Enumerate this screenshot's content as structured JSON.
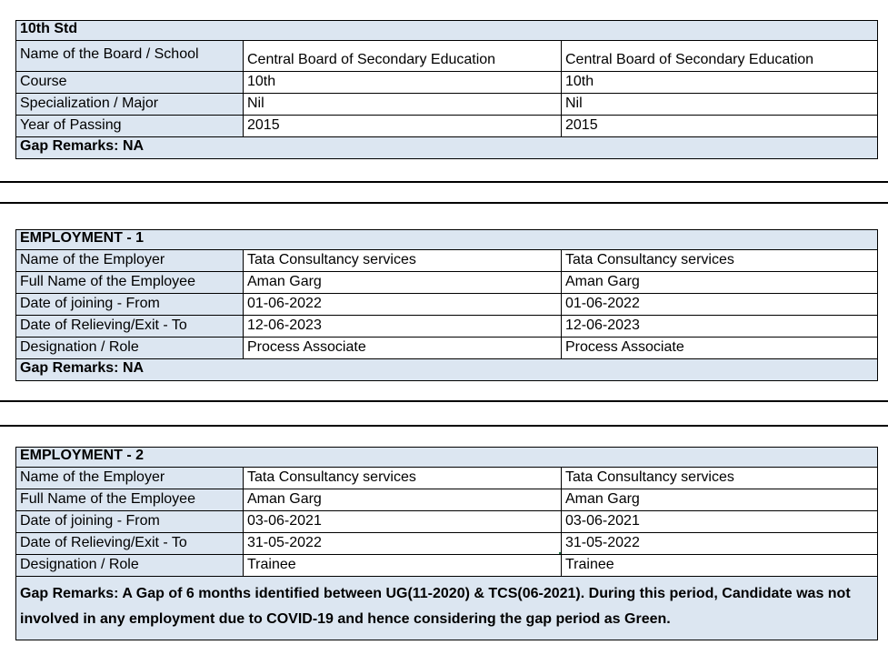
{
  "colors": {
    "section_bg": "#DCE6F1",
    "cell_bg": "#FFFFFF",
    "grid_border": "#000000",
    "selection_border": "#217346"
  },
  "sheet": {
    "tables": [
      {
        "header": "10th Std",
        "rows": [
          {
            "label": "Name of the Board / School",
            "values": [
              "Central Board of Secondary Education",
              "Central Board of Secondary Education"
            ]
          },
          {
            "label": "Course",
            "values": [
              "10th",
              "10th"
            ]
          },
          {
            "label": "Specialization / Major",
            "values": [
              "Nil",
              "Nil"
            ]
          },
          {
            "label": "Year of Passing",
            "values": [
              "2015",
              "2015"
            ]
          }
        ],
        "gap_remarks": "Gap Remarks: NA"
      },
      {
        "header": "EMPLOYMENT - 1",
        "rows": [
          {
            "label": "Name of the Employer",
            "values": [
              "Tata Consultancy services",
              "Tata Consultancy services"
            ]
          },
          {
            "label": "Full Name of the Employee",
            "values": [
              "Aman Garg",
              "Aman Garg"
            ]
          },
          {
            "label": "Date of joining - From",
            "values": [
              "01-06-2022",
              "01-06-2022"
            ]
          },
          {
            "label": "Date of Relieving/Exit - To",
            "values": [
              "12-06-2023",
              "12-06-2023"
            ]
          },
          {
            "label": "Designation / Role",
            "values": [
              "Process Associate",
              "Process Associate"
            ]
          }
        ],
        "gap_remarks": "Gap Remarks: NA"
      },
      {
        "header": "EMPLOYMENT - 2",
        "rows": [
          {
            "label": "Name of the Employer",
            "values": [
              "Tata Consultancy services",
              "Tata Consultancy services"
            ]
          },
          {
            "label": "Full Name of the Employee",
            "values": [
              "Aman Garg",
              "Aman Garg"
            ]
          },
          {
            "label": "Date of joining - From",
            "values": [
              "03-06-2021",
              "03-06-2021"
            ]
          },
          {
            "label": "Date of Relieving/Exit - To",
            "values": [
              "31-05-2022",
              "31-05-2022"
            ]
          },
          {
            "label": "Designation / Role",
            "values": [
              "Trainee",
              "Trainee"
            ]
          }
        ],
        "gap_remarks": "Gap Remarks: A Gap of 6 months identified between UG(11-2020) & TCS(06-2021). During this period, Candidate was not involved in any employment due to COVID-19 and hence considering the gap period as Green."
      }
    ],
    "selection": {
      "table_header": "EMPLOYMENT - 2",
      "row_label": "Date of Relieving/Exit - To",
      "column_index": 0,
      "value": "31-05-2022"
    }
  }
}
